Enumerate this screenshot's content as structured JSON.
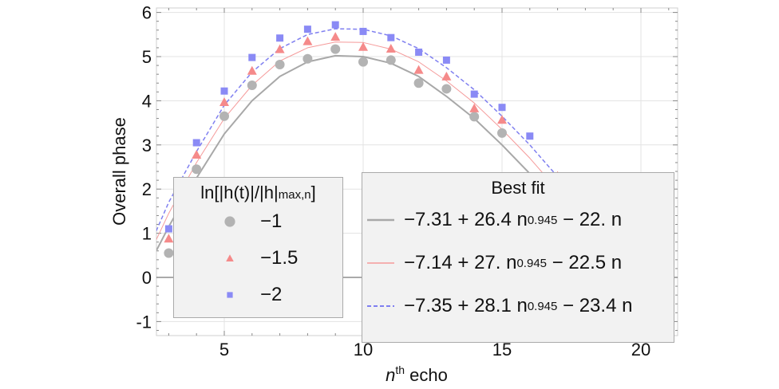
{
  "chart_data": {
    "type": "scatter",
    "xlabel": "n",
    "xlabel_sup": "th",
    "xlabel_rest": " echo",
    "ylabel": "Overall phase",
    "xlim": [
      2.5,
      21.4
    ],
    "ylim": [
      -1.3,
      6.1
    ],
    "xticks": [
      "5",
      "10",
      "15",
      "20"
    ],
    "yticks": [
      "-1",
      "0",
      "1",
      "2",
      "3",
      "4",
      "5",
      "6"
    ],
    "grid": true,
    "series": [
      {
        "name": "−1",
        "color": "#b3b3b3",
        "marker": "circle",
        "x": [
          3,
          4,
          5,
          6,
          7,
          8,
          9,
          10,
          11,
          12,
          13,
          14,
          15
        ],
        "y": [
          0.55,
          2.45,
          3.65,
          4.35,
          4.82,
          4.95,
          5.17,
          4.88,
          4.92,
          4.4,
          4.27,
          3.64,
          3.27
        ]
      },
      {
        "name": "−1.5",
        "color": "#f58a8a",
        "marker": "triangle",
        "x": [
          3,
          4,
          5,
          6,
          7,
          8,
          9,
          10,
          11,
          12,
          13,
          14,
          15,
          17
        ],
        "y": [
          0.88,
          2.78,
          3.97,
          4.68,
          5.17,
          5.35,
          5.45,
          5.22,
          5.18,
          4.7,
          4.55,
          3.83,
          3.57,
          2.3
        ]
      },
      {
        "name": "−2",
        "color": "#8a8af5",
        "marker": "square",
        "x": [
          3,
          4,
          5,
          6,
          7,
          8,
          9,
          10,
          11,
          12,
          13,
          14,
          15,
          16
        ],
        "y": [
          1.1,
          3.05,
          4.22,
          4.98,
          5.42,
          5.62,
          5.72,
          5.57,
          5.43,
          5.1,
          4.92,
          4.15,
          3.85,
          3.2
        ]
      }
    ],
    "fits": [
      {
        "label": "−7.31 + 26.4 n",
        "exp": "0.945",
        "rest": " − 22. n",
        "color": "#a8a8a8",
        "style": "solid",
        "x": [
          2.55,
          3,
          4,
          5,
          6,
          7,
          8,
          9,
          10,
          11,
          12,
          13,
          14,
          15,
          16,
          17,
          18,
          19,
          20,
          21
        ],
        "y": [
          0.6,
          1.15,
          2.25,
          3.25,
          4.0,
          4.55,
          4.88,
          5.02,
          5.0,
          4.85,
          4.55,
          4.1,
          3.6,
          3.0,
          2.35,
          1.65,
          0.85,
          0.0,
          -0.85,
          -1.75
        ]
      },
      {
        "label": "−7.14 + 27. n",
        "exp": "0.945",
        "rest": " − 22.5 n",
        "color": "#f59a9a",
        "style": "thin",
        "x": [
          2.55,
          3,
          4,
          5,
          6,
          7,
          8,
          9,
          10,
          11,
          12,
          13,
          14,
          15,
          16,
          17,
          18,
          19,
          20,
          21
        ],
        "y": [
          0.85,
          1.45,
          2.6,
          3.6,
          4.35,
          4.9,
          5.2,
          5.33,
          5.32,
          5.17,
          4.88,
          4.45,
          3.95,
          3.35,
          2.7,
          1.98,
          1.2,
          0.35,
          -0.55,
          -1.5
        ]
      },
      {
        "label": "−7.35 + 28.1 n",
        "exp": "0.945",
        "rest": " − 23.4 n",
        "color": "#7f7ff0",
        "style": "dashed",
        "x": [
          2.55,
          3,
          4,
          5,
          6,
          7,
          8,
          9,
          10,
          11,
          12,
          13,
          14,
          15,
          16,
          17,
          18,
          19,
          20,
          21
        ],
        "y": [
          1.05,
          1.7,
          2.85,
          3.9,
          4.65,
          5.18,
          5.5,
          5.63,
          5.62,
          5.47,
          5.18,
          4.75,
          4.25,
          3.65,
          3.0,
          2.28,
          1.5,
          0.65,
          -0.25,
          -1.2
        ]
      }
    ],
    "legend_markers": {
      "title_main": "ln[|h(t)|/|h|",
      "title_sub": "max,n",
      "title_end": "]",
      "placement": "left-middle"
    },
    "legend_fits": {
      "title": "Best fit",
      "placement": "bottom-right"
    }
  }
}
